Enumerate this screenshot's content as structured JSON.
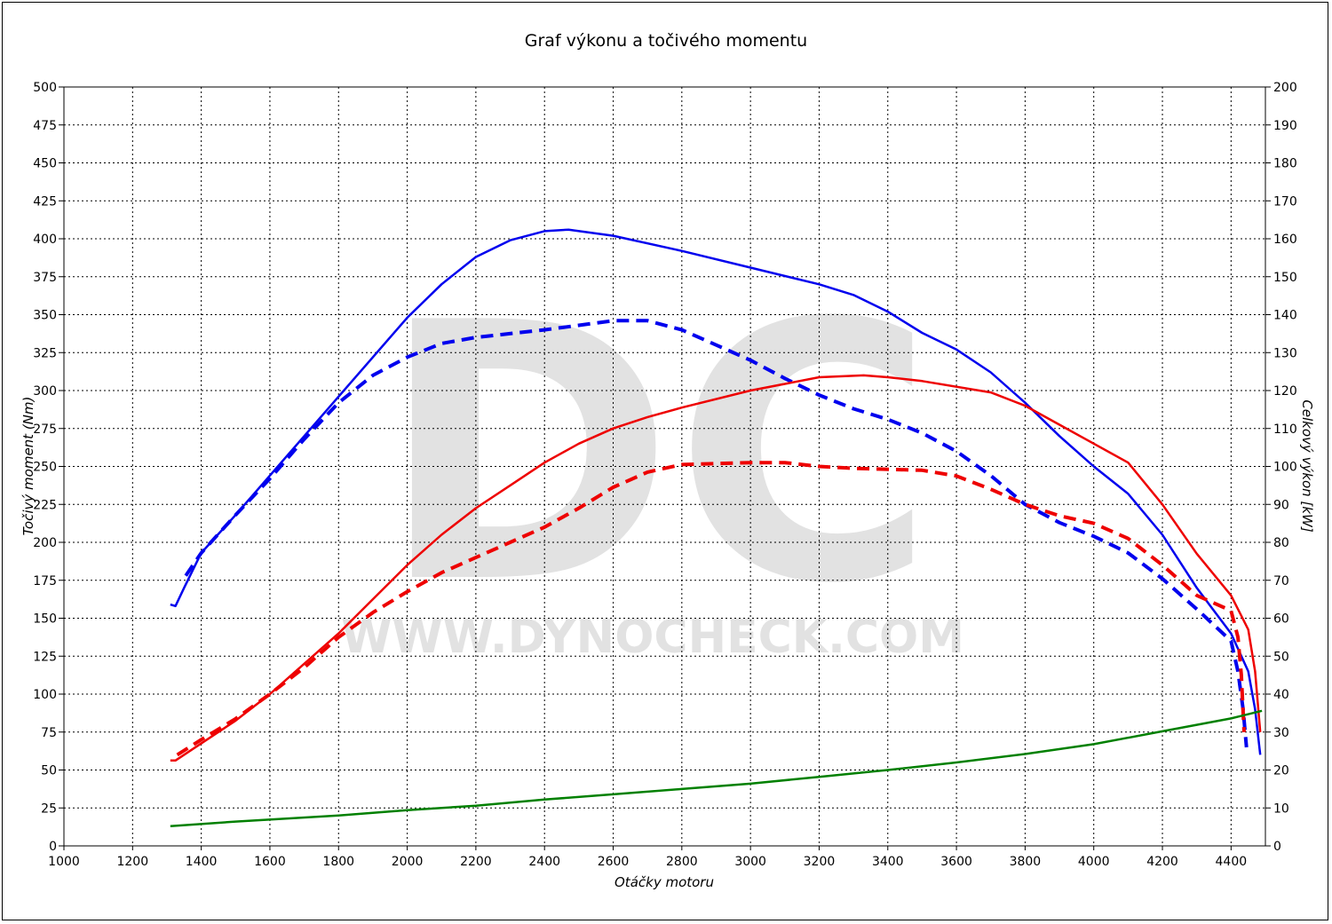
{
  "chart_data": {
    "type": "line",
    "title": "Graf výkonu a točivého momentu",
    "xlabel": "Otáčky motoru",
    "ylabel_left": "Točivý moment (Nm)",
    "ylabel_right": "Celkový výkon [kW]",
    "xlim": [
      1000,
      4500
    ],
    "ylim_left": [
      0,
      500
    ],
    "ylim_right": [
      0,
      200
    ],
    "x_ticks": [
      1000,
      1200,
      1400,
      1600,
      1800,
      2000,
      2200,
      2400,
      2600,
      2800,
      3000,
      3200,
      3400,
      3600,
      3800,
      4000,
      4200,
      4400
    ],
    "y_ticks_left": [
      0,
      25,
      50,
      75,
      100,
      125,
      150,
      175,
      200,
      225,
      250,
      275,
      300,
      325,
      350,
      375,
      400,
      425,
      450,
      475,
      500
    ],
    "y_ticks_right": [
      0,
      10,
      20,
      30,
      40,
      50,
      60,
      70,
      80,
      90,
      100,
      110,
      120,
      130,
      140,
      150,
      160,
      170,
      180,
      190,
      200
    ],
    "grid": true,
    "watermark": {
      "letters": "DC",
      "url": "WWW.DYNOCHECK.COM"
    },
    "series": [
      {
        "axis": "left",
        "color": "#0000ee",
        "style": "solid",
        "width": 2.5,
        "points": [
          [
            1310,
            159
          ],
          [
            1325,
            158
          ],
          [
            1350,
            170
          ],
          [
            1400,
            193
          ],
          [
            1500,
            218
          ],
          [
            1600,
            244
          ],
          [
            1700,
            270
          ],
          [
            1800,
            296
          ],
          [
            1900,
            322
          ],
          [
            2000,
            348
          ],
          [
            2100,
            370
          ],
          [
            2200,
            388
          ],
          [
            2300,
            399
          ],
          [
            2400,
            405
          ],
          [
            2470,
            406
          ],
          [
            2600,
            402
          ],
          [
            2800,
            392
          ],
          [
            3000,
            381
          ],
          [
            3200,
            370
          ],
          [
            3300,
            363
          ],
          [
            3400,
            352
          ],
          [
            3500,
            338
          ],
          [
            3600,
            327
          ],
          [
            3700,
            312
          ],
          [
            3800,
            292
          ],
          [
            3900,
            270
          ],
          [
            4000,
            250
          ],
          [
            4100,
            232
          ],
          [
            4200,
            205
          ],
          [
            4300,
            170
          ],
          [
            4350,
            155
          ],
          [
            4400,
            140
          ],
          [
            4450,
            115
          ],
          [
            4470,
            90
          ],
          [
            4485,
            60
          ]
        ]
      },
      {
        "axis": "left",
        "color": "#0000ee",
        "style": "dashed",
        "width": 4,
        "points": [
          [
            1355,
            178
          ],
          [
            1400,
            193
          ],
          [
            1500,
            218
          ],
          [
            1600,
            242
          ],
          [
            1700,
            268
          ],
          [
            1800,
            292
          ],
          [
            1900,
            310
          ],
          [
            2000,
            322
          ],
          [
            2100,
            331
          ],
          [
            2200,
            335
          ],
          [
            2400,
            340
          ],
          [
            2500,
            343
          ],
          [
            2600,
            346
          ],
          [
            2700,
            346
          ],
          [
            2800,
            340
          ],
          [
            2900,
            330
          ],
          [
            3000,
            320
          ],
          [
            3100,
            308
          ],
          [
            3200,
            297
          ],
          [
            3300,
            288
          ],
          [
            3400,
            281
          ],
          [
            3500,
            272
          ],
          [
            3600,
            260
          ],
          [
            3700,
            244
          ],
          [
            3800,
            225
          ],
          [
            3900,
            213
          ],
          [
            4000,
            204
          ],
          [
            4100,
            193
          ],
          [
            4200,
            176
          ],
          [
            4300,
            156
          ],
          [
            4400,
            135
          ],
          [
            4420,
            115
          ],
          [
            4435,
            90
          ],
          [
            4445,
            65
          ]
        ]
      },
      {
        "axis": "right",
        "color": "#ee0000",
        "style": "solid",
        "width": 2.5,
        "points": [
          [
            1310,
            22.5
          ],
          [
            1325,
            22.5
          ],
          [
            1400,
            27
          ],
          [
            1500,
            33
          ],
          [
            1600,
            40
          ],
          [
            1700,
            48
          ],
          [
            1800,
            56
          ],
          [
            1900,
            65
          ],
          [
            2000,
            74
          ],
          [
            2100,
            82
          ],
          [
            2200,
            89
          ],
          [
            2300,
            95
          ],
          [
            2400,
            101
          ],
          [
            2500,
            106
          ],
          [
            2600,
            110
          ],
          [
            2700,
            113
          ],
          [
            2800,
            115.5
          ],
          [
            3000,
            120
          ],
          [
            3200,
            123.5
          ],
          [
            3330,
            124
          ],
          [
            3400,
            123.5
          ],
          [
            3500,
            122.5
          ],
          [
            3700,
            119.5
          ],
          [
            3800,
            116
          ],
          [
            3900,
            111
          ],
          [
            4000,
            106
          ],
          [
            4100,
            101
          ],
          [
            4200,
            90
          ],
          [
            4300,
            77
          ],
          [
            4400,
            66
          ],
          [
            4450,
            57
          ],
          [
            4470,
            46
          ],
          [
            4485,
            30
          ]
        ]
      },
      {
        "axis": "right",
        "color": "#ee0000",
        "style": "dashed",
        "width": 4,
        "points": [
          [
            1330,
            24
          ],
          [
            1400,
            28
          ],
          [
            1500,
            33.5
          ],
          [
            1600,
            40
          ],
          [
            1700,
            47
          ],
          [
            1800,
            55
          ],
          [
            1900,
            61.5
          ],
          [
            2000,
            67
          ],
          [
            2100,
            72
          ],
          [
            2200,
            76
          ],
          [
            2300,
            80
          ],
          [
            2400,
            84
          ],
          [
            2500,
            89
          ],
          [
            2600,
            94.5
          ],
          [
            2700,
            98.5
          ],
          [
            2800,
            100.5
          ],
          [
            3000,
            101
          ],
          [
            3100,
            101
          ],
          [
            3200,
            100
          ],
          [
            3300,
            99.5
          ],
          [
            3500,
            99
          ],
          [
            3600,
            97.5
          ],
          [
            3700,
            94
          ],
          [
            3800,
            90
          ],
          [
            3900,
            87
          ],
          [
            4000,
            85
          ],
          [
            4100,
            81
          ],
          [
            4200,
            74
          ],
          [
            4300,
            66
          ],
          [
            4400,
            62
          ],
          [
            4420,
            55
          ],
          [
            4430,
            45
          ],
          [
            4438,
            30
          ]
        ]
      },
      {
        "axis": "left",
        "color": "#008000",
        "style": "solid",
        "width": 2.5,
        "points": [
          [
            1310,
            13
          ],
          [
            1500,
            16
          ],
          [
            1800,
            20
          ],
          [
            2000,
            23.5
          ],
          [
            2200,
            26.5
          ],
          [
            2400,
            30.5
          ],
          [
            2600,
            34
          ],
          [
            2800,
            37.5
          ],
          [
            3000,
            41
          ],
          [
            3200,
            45.5
          ],
          [
            3400,
            50
          ],
          [
            3600,
            55
          ],
          [
            3800,
            60.5
          ],
          [
            4000,
            67
          ],
          [
            4200,
            75.5
          ],
          [
            4400,
            84
          ],
          [
            4490,
            89
          ]
        ]
      }
    ]
  }
}
